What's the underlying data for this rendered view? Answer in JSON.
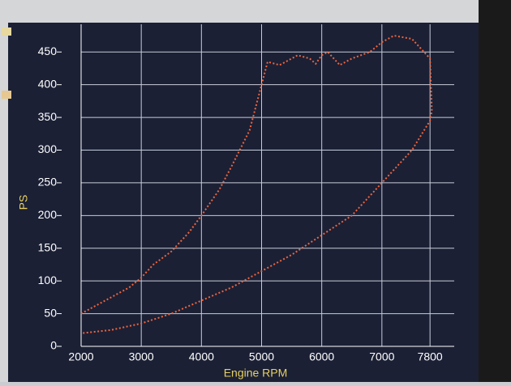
{
  "chart_data": {
    "type": "line",
    "xlabel": "Engine RPM",
    "ylabel": "PS",
    "xlim": [
      2000,
      8000
    ],
    "ylim": [
      0,
      480
    ],
    "xticks": [
      2000,
      3000,
      4000,
      5000,
      6000,
      7000,
      7800
    ],
    "yticks": [
      0,
      50,
      100,
      150,
      200,
      250,
      300,
      350,
      400,
      450
    ],
    "grid": true,
    "series": [
      {
        "color": "#f0643c",
        "x": [
          2000,
          2300,
          2500,
          2800,
          3000,
          3200,
          3500,
          3800,
          4000,
          4300,
          4500,
          4800,
          5000,
          5100,
          5300,
          5600,
          5800,
          5900,
          6000,
          6100,
          6300,
          6500,
          6800,
          7000,
          7200,
          7500,
          7700,
          7800,
          7830,
          7800,
          7500,
          7000,
          6500,
          6000,
          5500,
          5000,
          4500,
          4000,
          3500,
          3000,
          2500,
          2000
        ],
        "values": [
          50,
          65,
          75,
          90,
          105,
          125,
          145,
          175,
          200,
          240,
          275,
          330,
          400,
          435,
          430,
          445,
          440,
          432,
          445,
          450,
          430,
          440,
          450,
          465,
          475,
          470,
          450,
          440,
          360,
          345,
          300,
          250,
          200,
          170,
          140,
          115,
          90,
          70,
          50,
          35,
          25,
          20
        ]
      }
    ]
  }
}
